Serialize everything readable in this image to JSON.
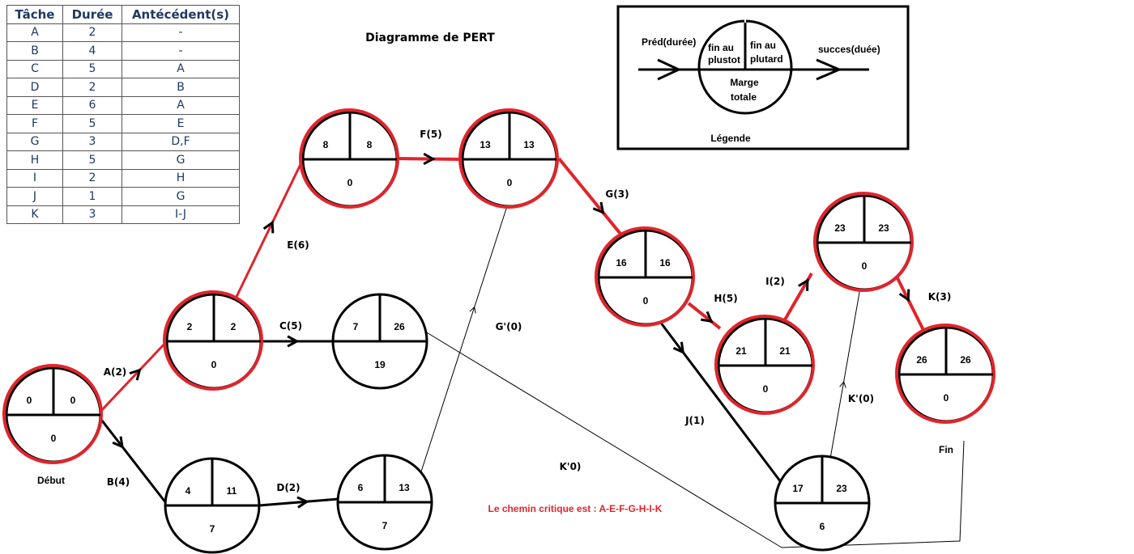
{
  "table": {
    "headers": [
      "Tâche",
      "Durée",
      "Antécédent(s)"
    ],
    "rows": [
      {
        "task": "A",
        "duration": "2",
        "pred": "-"
      },
      {
        "task": "B",
        "duration": "4",
        "pred": "-"
      },
      {
        "task": "C",
        "duration": "5",
        "pred": "A"
      },
      {
        "task": "D",
        "duration": "2",
        "pred": "B"
      },
      {
        "task": "E",
        "duration": "6",
        "pred": "A"
      },
      {
        "task": "F",
        "duration": "5",
        "pred": "E"
      },
      {
        "task": "G",
        "duration": "3",
        "pred": "D,F"
      },
      {
        "task": "H",
        "duration": "5",
        "pred": "G"
      },
      {
        "task": "I",
        "duration": "2",
        "pred": "H"
      },
      {
        "task": "J",
        "duration": "1",
        "pred": "G"
      },
      {
        "task": "K",
        "duration": "3",
        "pred": "I-J"
      }
    ]
  },
  "title": "Diagramme de PERT",
  "legend": {
    "pred": "Préd(durée)",
    "succ": "succes(duée)",
    "early_1": "fin au",
    "early_2": "plustot",
    "late_1": "fin au",
    "late_2": "plutard",
    "slack_1": "Marge",
    "slack_2": "totale",
    "caption": "Légende"
  },
  "nodes": [
    {
      "id": "n1",
      "early": "0",
      "late": "0",
      "slack": "0",
      "critical": true,
      "caption": "Début"
    },
    {
      "id": "n2",
      "early": "2",
      "late": "2",
      "slack": "0",
      "critical": true
    },
    {
      "id": "n3",
      "early": "8",
      "late": "8",
      "slack": "0",
      "critical": true
    },
    {
      "id": "n4",
      "early": "13",
      "late": "13",
      "slack": "0",
      "critical": true
    },
    {
      "id": "n5",
      "early": "7",
      "late": "26",
      "slack": "19",
      "critical": false
    },
    {
      "id": "n6",
      "early": "4",
      "late": "11",
      "slack": "7",
      "critical": false
    },
    {
      "id": "n7",
      "early": "6",
      "late": "13",
      "slack": "7",
      "critical": false
    },
    {
      "id": "n8",
      "early": "16",
      "late": "16",
      "slack": "0",
      "critical": true
    },
    {
      "id": "n9",
      "early": "21",
      "late": "21",
      "slack": "0",
      "critical": true
    },
    {
      "id": "n10",
      "early": "23",
      "late": "23",
      "slack": "0",
      "critical": true
    },
    {
      "id": "n11",
      "early": "26",
      "late": "26",
      "slack": "0",
      "critical": true,
      "caption": "Fin"
    },
    {
      "id": "n12",
      "early": "17",
      "late": "23",
      "slack": "6",
      "critical": false
    }
  ],
  "edges": [
    {
      "id": "A",
      "from": "n1",
      "to": "n2",
      "label": "A(2)",
      "critical": true
    },
    {
      "id": "B",
      "from": "n1",
      "to": "n6",
      "label": "B(4)",
      "critical": false
    },
    {
      "id": "C",
      "from": "n2",
      "to": "n5",
      "label": "C(5)",
      "critical": false
    },
    {
      "id": "D",
      "from": "n6",
      "to": "n7",
      "label": "D(2)",
      "critical": false
    },
    {
      "id": "E",
      "from": "n2",
      "to": "n3",
      "label": "E(6)",
      "critical": true
    },
    {
      "id": "F",
      "from": "n3",
      "to": "n4",
      "label": "F(5)",
      "critical": true
    },
    {
      "id": "G",
      "from": "n4",
      "to": "n8",
      "label": "G(3)",
      "critical": true
    },
    {
      "id": "Gp",
      "from": "n7",
      "to": "n4",
      "label": "G'(0)",
      "critical": false,
      "dummy": true
    },
    {
      "id": "H",
      "from": "n8",
      "to": "n9",
      "label": "H(5)",
      "critical": true
    },
    {
      "id": "I",
      "from": "n9",
      "to": "n10",
      "label": "I(2)",
      "critical": true
    },
    {
      "id": "J",
      "from": "n8",
      "to": "n12",
      "label": "J(1)",
      "critical": false
    },
    {
      "id": "Kp",
      "from": "n12",
      "to": "n10",
      "label": "K'(0)",
      "critical": false,
      "dummy": true
    },
    {
      "id": "K",
      "from": "n10",
      "to": "n11",
      "label": "K(3)",
      "critical": true
    },
    {
      "id": "Kpp",
      "from": "n5",
      "to": "n11",
      "label": "K'0)",
      "critical": false,
      "dummy": true
    }
  ],
  "critical_path": "Le chemin critique est : A-E-F-G-H-I-K",
  "colors": {
    "critical": "#e0242c",
    "normal": "#000000",
    "table_text": "#1f3864"
  }
}
